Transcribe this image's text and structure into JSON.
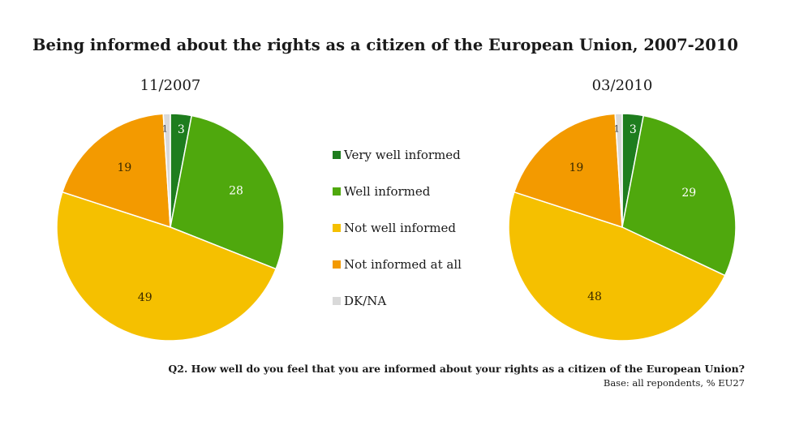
{
  "chart_data": {
    "type": "pie",
    "title": "Being informed about the rights as a citizen of the European Union, 2007-2010",
    "categories": [
      "Very well informed",
      "Well informed",
      "Not well informed",
      "Not informed at all",
      "DK/NA"
    ],
    "colors": [
      "#1e7d1e",
      "#4fa80d",
      "#f5c000",
      "#f39a00",
      "#d9d9d9"
    ],
    "series": [
      {
        "name": "11/2007",
        "values": [
          3,
          28,
          49,
          19,
          1
        ]
      },
      {
        "name": "03/2010",
        "values": [
          3,
          29,
          48,
          19,
          1
        ]
      }
    ],
    "legend": "center"
  },
  "footnote": {
    "question": "Q2. How well do you feel that you are informed about your rights as a citizen of the European Union?",
    "base": "Base: all repondents, % EU27"
  }
}
